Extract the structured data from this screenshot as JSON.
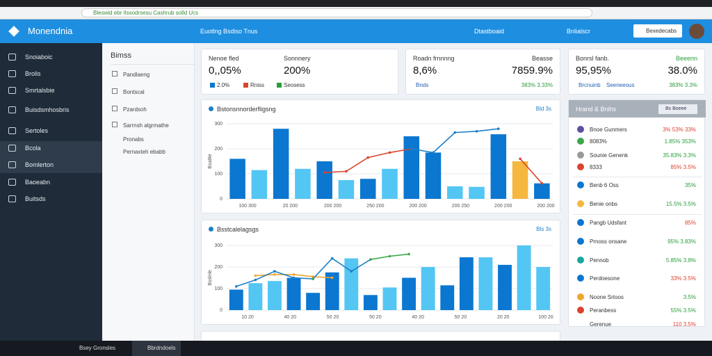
{
  "browser": {
    "url": "Bleswid ebr Ilssodrsesu Cashrub solld Ucs"
  },
  "header": {
    "brand": "Monendnia",
    "nav": "Euotlng Bsdiso Tnus",
    "link": "Dtastboaid",
    "link2": "Bnlialscr",
    "button": "Bexedecabs"
  },
  "sidebar": [
    "Snoiaboic",
    "Brolis",
    "Smrtalsbie",
    "Buisdsmhosbris",
    "Sertoles",
    "Bcola",
    "Bomlerton",
    "Baoeabn",
    "Buitsds"
  ],
  "subnav": {
    "title": "Bimss",
    "items": [
      "Pandlaeng",
      "Bontscal",
      "Pzardsoh",
      "Sarrnsh algrmathe",
      "Pronabs",
      "Pernaxteh ebabb"
    ]
  },
  "stats": [
    {
      "label": "Nenoe fled",
      "value": "0,,05%",
      "label2": "Sonnnery",
      "value2": "200%",
      "foot": [
        "2.0%",
        "Rniss",
        "Seosess"
      ]
    },
    {
      "label": "Roadn frnnnng",
      "value": "8,6%",
      "label2": "Beasse",
      "value2": "7859.9%",
      "foot": [
        "Bnds",
        "383% 3.33%"
      ]
    },
    {
      "label": "Bonrsl fanb.",
      "value": "95,95%",
      "label2": "Beeenn",
      "value2": "38.0%",
      "foot": [
        "Brcnuinb",
        "Seeneeous",
        "383% 3.3%"
      ]
    }
  ],
  "charts": [
    {
      "type": "bar",
      "title": "Bstonsnnorderfligsng",
      "action": "Bld 3s",
      "ylim": [
        0,
        300
      ],
      "yticks": [
        0,
        100,
        200,
        300
      ],
      "y_label": "Bsatlte",
      "values": [
        160,
        115,
        280,
        120,
        150,
        75,
        80,
        120,
        250,
        185,
        50,
        48,
        258,
        150,
        62
      ],
      "colors": [
        "#0b77d0",
        "#53c6f4",
        "#0b77d0",
        "#53c6f4",
        "#0b77d0",
        "#53c6f4",
        "#0b77d0",
        "#53c6f4",
        "#0b77d0",
        "#0b77d0",
        "#53c6f4",
        "#53c6f4",
        "#0b77d0",
        "#f5b73f",
        "#0b77d0"
      ],
      "lines": [
        {
          "color": "#d9432f",
          "values": [
            null,
            null,
            null,
            null,
            105,
            110,
            165,
            185,
            200,
            null,
            null,
            null,
            null,
            160,
            62
          ]
        },
        {
          "color": "#1d7fc8",
          "values": [
            null,
            null,
            null,
            null,
            null,
            null,
            null,
            null,
            200,
            185,
            265,
            270,
            280,
            null,
            null
          ]
        }
      ],
      "x_labels": [
        "100 300",
        "20 200",
        "200 200",
        "250 200",
        "200 200",
        "200 250",
        "200 200",
        "200 200"
      ]
    },
    {
      "type": "bar",
      "title": "Bsstcalelagsgs",
      "action": "Bls 3s",
      "ylim": [
        0,
        300
      ],
      "yticks": [
        0,
        100,
        200,
        300
      ],
      "y_label": "Bsslnle",
      "values": [
        95,
        125,
        135,
        150,
        80,
        175,
        240,
        70,
        105,
        150,
        200,
        115,
        245,
        245,
        210,
        300,
        200
      ],
      "colors": [
        "#0b77d0",
        "#53c6f4",
        "#53c6f4",
        "#0b77d0",
        "#0b77d0",
        "#0b77d0",
        "#53c6f4",
        "#0b77d0",
        "#53c6f4",
        "#0b77d0",
        "#53c6f4",
        "#0b77d0",
        "#0b77d0",
        "#53c6f4",
        "#0b77d0",
        "#53c6f4",
        "#53c6f4"
      ],
      "lines": [
        {
          "color": "#f0a52c",
          "values": [
            null,
            160,
            165,
            165,
            155,
            150,
            null,
            null,
            null,
            null,
            null,
            null,
            null,
            null,
            null,
            null,
            null
          ]
        },
        {
          "color": "#1d7fc8",
          "values": [
            110,
            140,
            180,
            150,
            145,
            240,
            180,
            235,
            null,
            null,
            null,
            null,
            null,
            null,
            null,
            null,
            null
          ]
        },
        {
          "color": "#3aa84b",
          "values": [
            null,
            null,
            null,
            null,
            145,
            null,
            null,
            235,
            250,
            260,
            null,
            null,
            null,
            null,
            null,
            null,
            null
          ]
        }
      ],
      "x_labels": [
        "10 20",
        "40 20",
        "50 20",
        "50 20",
        "40 20",
        "50 20",
        "20 20",
        "100 20"
      ]
    }
  ],
  "panel": {
    "title": "Hrand & Bnihs",
    "button": "Bs Boeee",
    "rows": [
      [
        "Bnoe Gunmers",
        "3% 53% 33%",
        "#5e4fa2"
      ],
      [
        "8083%",
        "1.85% 353%",
        "#3aa84b"
      ],
      [
        "Sounie Genenk",
        "35.83% 3.3%",
        "#999999"
      ],
      [
        "8333",
        "85% 3.5%",
        "#d9432f"
      ],
      [
        "Benb 6 Oss",
        "35%",
        "#0b77d0"
      ],
      [
        "Benie onbs",
        "15.5% 3.5%",
        "#f5b73f"
      ],
      [
        "Pangb Udsfant",
        "85%",
        "#0b77d0"
      ],
      [
        "Prnoss onsane",
        "95% 3.83%",
        "#0b77d0"
      ],
      [
        "Pennob",
        "5.85% 3.8%",
        "#1aa6a0"
      ],
      [
        "Perdoesone",
        "33% 3.5%",
        "#0b77d0"
      ],
      [
        "Noone Srtoos",
        "3.5%",
        "#f0a52c"
      ],
      [
        "Peranbess",
        "55% 3.5%",
        "#d9432f"
      ],
      [
        "Gerenue",
        "110 3.5%",
        "#cccccc"
      ]
    ]
  },
  "taskbar": {
    "app": "Bsey Gronsles",
    "app2": "Bbrdndoels"
  }
}
